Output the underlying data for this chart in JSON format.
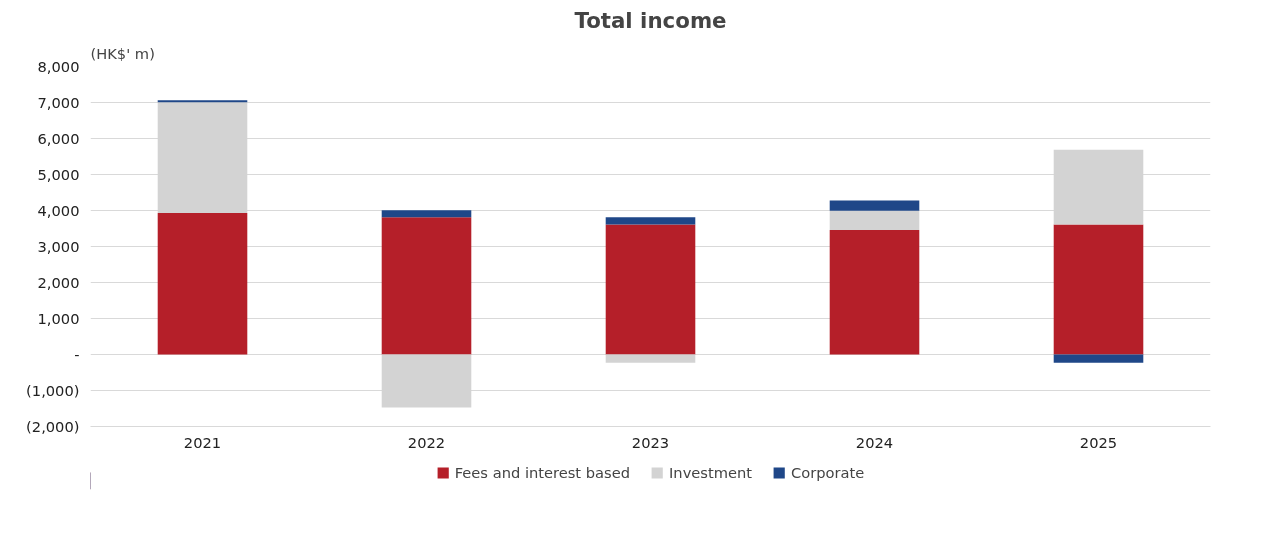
{
  "chart_data": {
    "type": "bar",
    "title": "Total income",
    "ylabel": "(HK$' m)",
    "categories": [
      "2021",
      "2022",
      "2023",
      "2024",
      "2025"
    ],
    "stacked": true,
    "series": [
      {
        "name": "Fees and interest based",
        "color": "#b51f29",
        "values": [
          3930,
          3810,
          3610,
          3460,
          3610
        ]
      },
      {
        "name": "Investment",
        "color": "#d3d3d3",
        "values": [
          3080,
          -1470,
          -230,
          530,
          2080
        ]
      },
      {
        "name": "Corporate",
        "color": "#1f4788",
        "values": [
          50,
          200,
          200,
          290,
          -230
        ]
      }
    ],
    "ylim": [
      -2000,
      8000
    ],
    "yticks": [
      {
        "value": -2000,
        "label": "(2,000)"
      },
      {
        "value": -1000,
        "label": "(1,000)"
      },
      {
        "value": 0,
        "label": "-"
      },
      {
        "value": 1000,
        "label": "1,000"
      },
      {
        "value": 2000,
        "label": "2,000"
      },
      {
        "value": 3000,
        "label": "3,000"
      },
      {
        "value": 4000,
        "label": "4,000"
      },
      {
        "value": 5000,
        "label": "5,000"
      },
      {
        "value": 6000,
        "label": "6,000"
      },
      {
        "value": 7000,
        "label": "7,000"
      },
      {
        "value": 8000,
        "label": "8,000"
      }
    ],
    "grid": "y",
    "legend": "bottom"
  }
}
